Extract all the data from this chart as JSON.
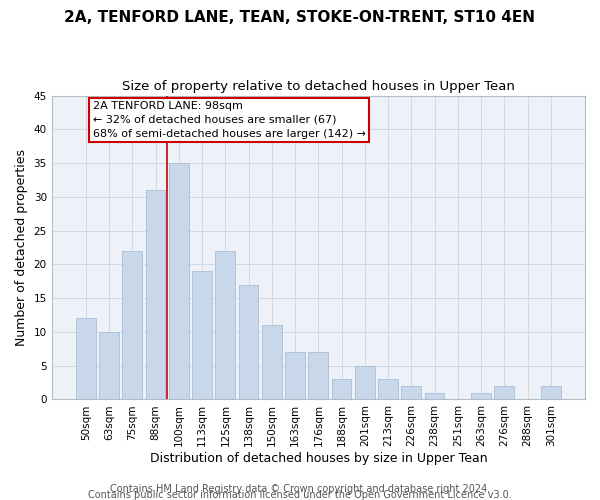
{
  "title": "2A, TENFORD LANE, TEAN, STOKE-ON-TRENT, ST10 4EN",
  "subtitle": "Size of property relative to detached houses in Upper Tean",
  "xlabel": "Distribution of detached houses by size in Upper Tean",
  "ylabel": "Number of detached properties",
  "bar_labels": [
    "50sqm",
    "63sqm",
    "75sqm",
    "88sqm",
    "100sqm",
    "113sqm",
    "125sqm",
    "138sqm",
    "150sqm",
    "163sqm",
    "176sqm",
    "188sqm",
    "201sqm",
    "213sqm",
    "226sqm",
    "238sqm",
    "251sqm",
    "263sqm",
    "276sqm",
    "288sqm",
    "301sqm"
  ],
  "bar_values": [
    12,
    10,
    22,
    31,
    35,
    19,
    22,
    17,
    11,
    7,
    7,
    3,
    5,
    3,
    2,
    1,
    0,
    1,
    2,
    0,
    2
  ],
  "bar_color": "#c8d8ea",
  "bar_edge_color": "#a8c0d8",
  "highlight_index": 4,
  "vline_color": "#cc0000",
  "ylim": [
    0,
    45
  ],
  "yticks": [
    0,
    5,
    10,
    15,
    20,
    25,
    30,
    35,
    40,
    45
  ],
  "annotation_title": "2A TENFORD LANE: 98sqm",
  "annotation_line1": "← 32% of detached houses are smaller (67)",
  "annotation_line2": "68% of semi-detached houses are larger (142) →",
  "footer_line1": "Contains HM Land Registry data © Crown copyright and database right 2024.",
  "footer_line2": "Contains public sector information licensed under the Open Government Licence v3.0.",
  "background_color": "#ffffff",
  "plot_bg_color": "#eef2f8",
  "grid_color": "#d0d8e4",
  "title_fontsize": 11,
  "subtitle_fontsize": 9.5,
  "xlabel_fontsize": 9,
  "ylabel_fontsize": 9,
  "tick_fontsize": 7.5,
  "footer_fontsize": 7
}
